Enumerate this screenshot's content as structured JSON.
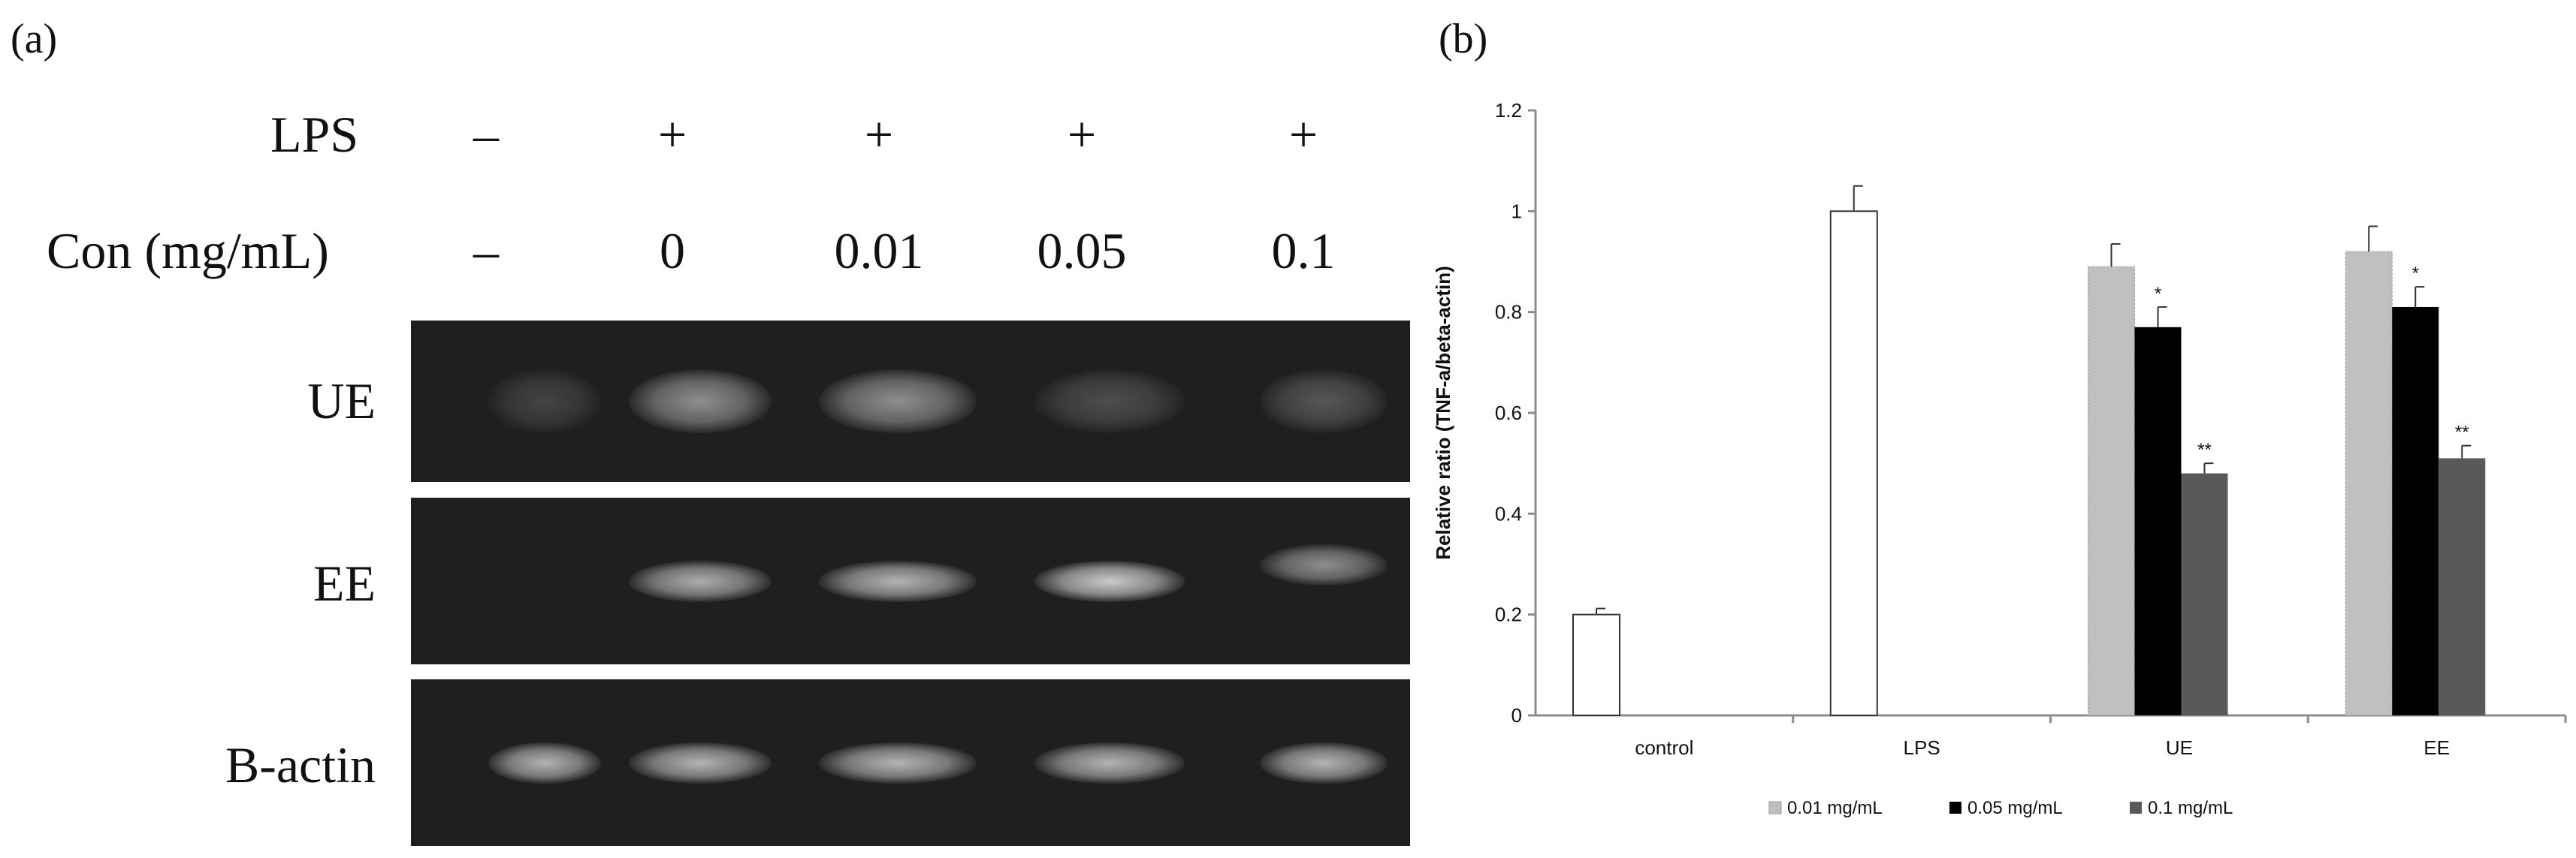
{
  "panels": {
    "a": "(a)",
    "b": "(b)"
  },
  "gel": {
    "header_rows": [
      {
        "label": "LPS",
        "values": [
          "–",
          "+",
          "+",
          "+",
          "+"
        ]
      },
      {
        "label": "Con (mg/mL)",
        "values": [
          "–",
          "0",
          "0.01",
          "0.05",
          "0.1"
        ]
      }
    ],
    "rows": [
      {
        "label": "UE",
        "band_intensity": [
          0.05,
          0.55,
          0.55,
          0.12,
          0.18
        ]
      },
      {
        "label": "EE",
        "band_intensity": [
          0.0,
          0.75,
          0.8,
          0.95,
          0.55
        ]
      },
      {
        "label": "B-actin",
        "band_intensity": [
          0.8,
          0.8,
          0.8,
          0.8,
          0.8
        ]
      }
    ]
  },
  "chart_data": {
    "type": "bar",
    "title": "",
    "ylabel": "Relative ratio (TNF-a/beta-actin)",
    "xlabel": "",
    "ylim": [
      0,
      1.2
    ],
    "yticks": [
      "0",
      "0.2",
      "0.4",
      "0.6",
      "0.8",
      "1",
      "1.2"
    ],
    "categories": [
      "control",
      "LPS",
      "UE",
      "EE"
    ],
    "single_bars": [
      {
        "category": "control",
        "value": 0.2,
        "error": 0.012
      },
      {
        "category": "LPS",
        "value": 1.0,
        "error": 0.05
      }
    ],
    "series": [
      {
        "name": "0.01 mg/mL",
        "color": "#c0c0c0",
        "values": [
          null,
          null,
          0.89,
          0.92
        ],
        "errors": [
          null,
          null,
          0.045,
          0.05
        ],
        "marks": [
          "",
          "",
          "",
          ""
        ]
      },
      {
        "name": "0.05 mg/mL",
        "color": "#000000",
        "values": [
          null,
          null,
          0.77,
          0.81
        ],
        "errors": [
          null,
          null,
          0.04,
          0.04
        ],
        "marks": [
          "",
          "",
          "*",
          "*"
        ]
      },
      {
        "name": "0.1 mg/mL",
        "color": "#595959",
        "values": [
          null,
          null,
          0.48,
          0.51
        ],
        "errors": [
          null,
          null,
          0.02,
          0.025
        ],
        "marks": [
          "",
          "",
          "**",
          "**"
        ]
      }
    ],
    "legend_position": "bottom",
    "grid": false
  }
}
